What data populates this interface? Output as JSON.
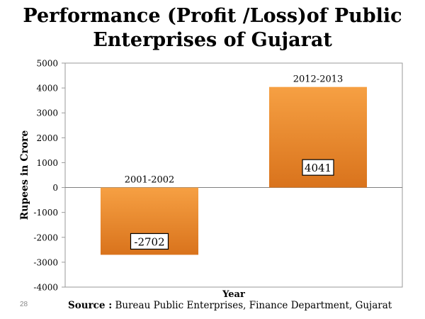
{
  "page": {
    "title_line1": "Performance (Profit /Loss)of Public",
    "title_line2": "Enterprises of Gujarat",
    "slide_number": "28",
    "source_label": "Source :",
    "source_text": " Bureau Public Enterprises, Finance Department, Gujarat"
  },
  "chart_data": {
    "type": "bar",
    "title": "Performance (Profit /Loss)of Public Enterprises of Gujarat",
    "categories": [
      "2001-2002",
      "2012-2013"
    ],
    "values": [
      -2702,
      4041
    ],
    "data_labels": [
      "-2702",
      "4041"
    ],
    "xlabel": "Year",
    "ylabel": "Rupees in Crore",
    "ylim": [
      -4000,
      5000
    ],
    "yticks": [
      5000,
      4000,
      3000,
      2000,
      1000,
      0,
      -1000,
      -2000,
      -3000,
      -4000
    ],
    "grid": false,
    "legend": "none",
    "bar_color_top": "#F6A043",
    "bar_color_bottom": "#D9731C"
  }
}
